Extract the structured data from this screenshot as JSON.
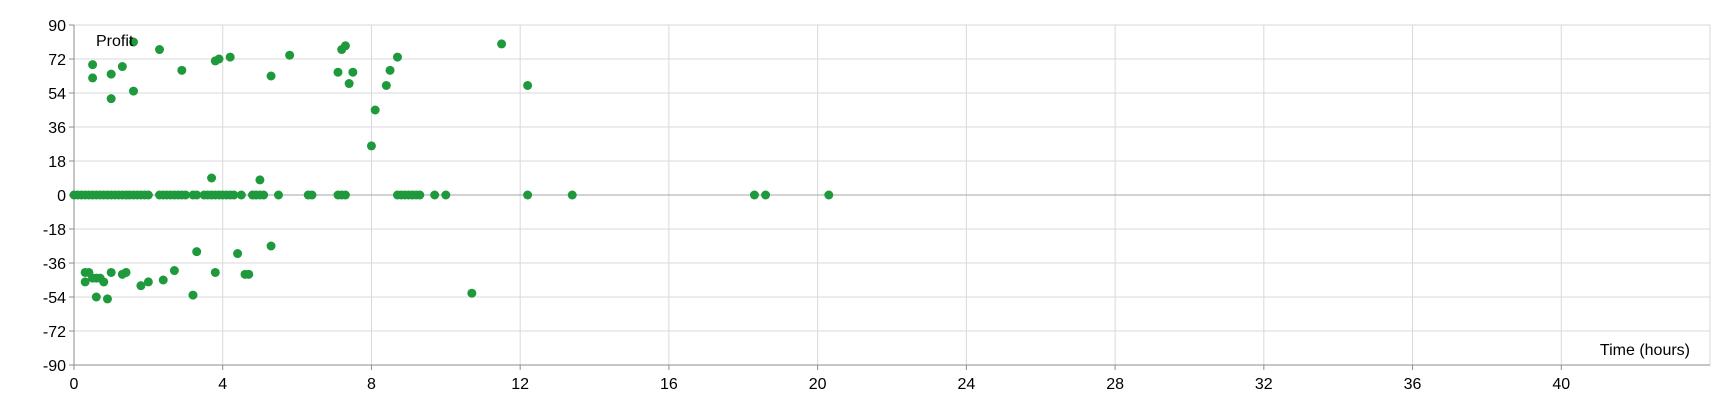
{
  "chart_data": {
    "type": "scatter",
    "title": "",
    "xlabel": "Time (hours)",
    "ylabel": "Profit",
    "xlim": [
      0,
      44
    ],
    "ylim": [
      -90,
      90
    ],
    "x_ticks": [
      0,
      4,
      8,
      12,
      16,
      20,
      24,
      28,
      32,
      36,
      40
    ],
    "y_ticks": [
      90,
      72,
      54,
      36,
      18,
      0,
      -18,
      -36,
      -54,
      -72,
      -90
    ],
    "grid": true,
    "legend": "none",
    "colors": {
      "marker": "#1e9a3c",
      "grid": "#d9d9d9",
      "zero_line": "#a6a6a6",
      "axis": "#8c8c8c"
    },
    "series": [
      {
        "points": [
          [
            0.0,
            0
          ],
          [
            0.1,
            0
          ],
          [
            0.2,
            0
          ],
          [
            0.3,
            0
          ],
          [
            0.4,
            0
          ],
          [
            0.5,
            0
          ],
          [
            0.6,
            0
          ],
          [
            0.7,
            0
          ],
          [
            0.8,
            0
          ],
          [
            0.9,
            0
          ],
          [
            1.0,
            0
          ],
          [
            1.1,
            0
          ],
          [
            1.2,
            0
          ],
          [
            1.3,
            0
          ],
          [
            1.4,
            0
          ],
          [
            1.5,
            0
          ],
          [
            1.6,
            0
          ],
          [
            1.7,
            0
          ],
          [
            1.8,
            0
          ],
          [
            1.9,
            0
          ],
          [
            2.0,
            0
          ],
          [
            2.3,
            0
          ],
          [
            2.4,
            0
          ],
          [
            2.5,
            0
          ],
          [
            2.6,
            0
          ],
          [
            2.7,
            0
          ],
          [
            2.8,
            0
          ],
          [
            2.9,
            0
          ],
          [
            3.0,
            0
          ],
          [
            3.2,
            0
          ],
          [
            3.3,
            0
          ],
          [
            3.5,
            0
          ],
          [
            3.6,
            0
          ],
          [
            3.7,
            0
          ],
          [
            3.8,
            0
          ],
          [
            3.9,
            0
          ],
          [
            4.0,
            0
          ],
          [
            4.1,
            0
          ],
          [
            4.2,
            0
          ],
          [
            4.3,
            0
          ],
          [
            4.5,
            0
          ],
          [
            4.8,
            0
          ],
          [
            4.9,
            0
          ],
          [
            5.0,
            0
          ],
          [
            5.1,
            0
          ],
          [
            5.5,
            0
          ],
          [
            6.3,
            0
          ],
          [
            6.4,
            0
          ],
          [
            7.1,
            0
          ],
          [
            7.2,
            0
          ],
          [
            7.3,
            0
          ],
          [
            8.7,
            0
          ],
          [
            8.8,
            0
          ],
          [
            8.9,
            0
          ],
          [
            9.0,
            0
          ],
          [
            9.1,
            0
          ],
          [
            9.2,
            0
          ],
          [
            9.3,
            0
          ],
          [
            9.7,
            0
          ],
          [
            10.0,
            0
          ],
          [
            12.2,
            0
          ],
          [
            13.4,
            0
          ],
          [
            18.3,
            0
          ],
          [
            18.6,
            0
          ],
          [
            20.3,
            0
          ],
          [
            0.5,
            69
          ],
          [
            0.5,
            62
          ],
          [
            1.0,
            51
          ],
          [
            1.0,
            64
          ],
          [
            1.3,
            68
          ],
          [
            1.6,
            81
          ],
          [
            1.6,
            55
          ],
          [
            2.3,
            77
          ],
          [
            2.9,
            66
          ],
          [
            3.8,
            71
          ],
          [
            3.9,
            72
          ],
          [
            4.2,
            73
          ],
          [
            5.3,
            63
          ],
          [
            5.8,
            74
          ],
          [
            7.1,
            65
          ],
          [
            7.2,
            77
          ],
          [
            7.3,
            79
          ],
          [
            7.4,
            59
          ],
          [
            7.5,
            65
          ],
          [
            8.0,
            26
          ],
          [
            8.1,
            45
          ],
          [
            8.4,
            58
          ],
          [
            8.5,
            66
          ],
          [
            8.7,
            73
          ],
          [
            11.5,
            80
          ],
          [
            12.2,
            58
          ],
          [
            3.7,
            9
          ],
          [
            5.0,
            8
          ],
          [
            0.3,
            -41
          ],
          [
            0.4,
            -41
          ],
          [
            0.3,
            -46
          ],
          [
            0.5,
            -44
          ],
          [
            0.6,
            -44
          ],
          [
            0.6,
            -54
          ],
          [
            0.7,
            -44
          ],
          [
            0.8,
            -46
          ],
          [
            0.9,
            -55
          ],
          [
            1.0,
            -41
          ],
          [
            1.3,
            -42
          ],
          [
            1.4,
            -41
          ],
          [
            1.8,
            -48
          ],
          [
            2.0,
            -46
          ],
          [
            2.4,
            -45
          ],
          [
            2.7,
            -40
          ],
          [
            3.2,
            -53
          ],
          [
            3.3,
            -30
          ],
          [
            3.8,
            -41
          ],
          [
            4.4,
            -31
          ],
          [
            4.6,
            -42
          ],
          [
            4.7,
            -42
          ],
          [
            5.3,
            -27
          ],
          [
            10.7,
            -52
          ]
        ]
      }
    ]
  }
}
